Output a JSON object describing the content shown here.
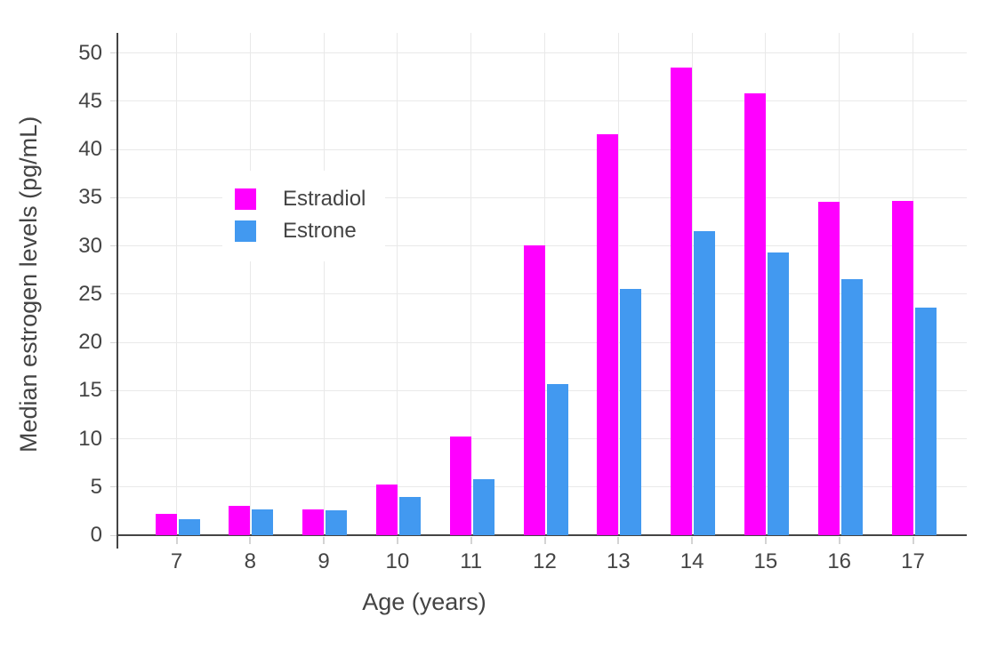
{
  "chart_data": {
    "type": "bar",
    "title": "",
    "xlabel": "Age (years)",
    "ylabel": "Median estrogen levels (pg/mL)",
    "categories": [
      "7",
      "8",
      "9",
      "10",
      "11",
      "12",
      "13",
      "14",
      "15",
      "16",
      "17"
    ],
    "series": [
      {
        "name": "Estradiol",
        "color": "#ff00ff",
        "values": [
          2.2,
          3.0,
          2.7,
          5.3,
          10.2,
          30.1,
          41.6,
          48.5,
          45.8,
          34.6,
          34.7
        ]
      },
      {
        "name": "Estrone",
        "color": "#4299f0",
        "values": [
          1.7,
          2.7,
          2.6,
          4.0,
          5.8,
          15.7,
          25.5,
          31.5,
          29.3,
          26.6,
          23.6
        ]
      }
    ],
    "ylim": [
      0,
      52.1
    ],
    "yticks": [
      0,
      5,
      10,
      15,
      20,
      25,
      30,
      35,
      40,
      45,
      50
    ],
    "grid": true,
    "legend_position": "inside-top-left"
  },
  "colors": {
    "background": "#ffffff",
    "axis_line": "#444444",
    "text": "#444444",
    "gridline": "#e9e9e9",
    "tick": "#d4d4d4",
    "estradiol": "#ff00ff",
    "estrone": "#4299f0"
  }
}
